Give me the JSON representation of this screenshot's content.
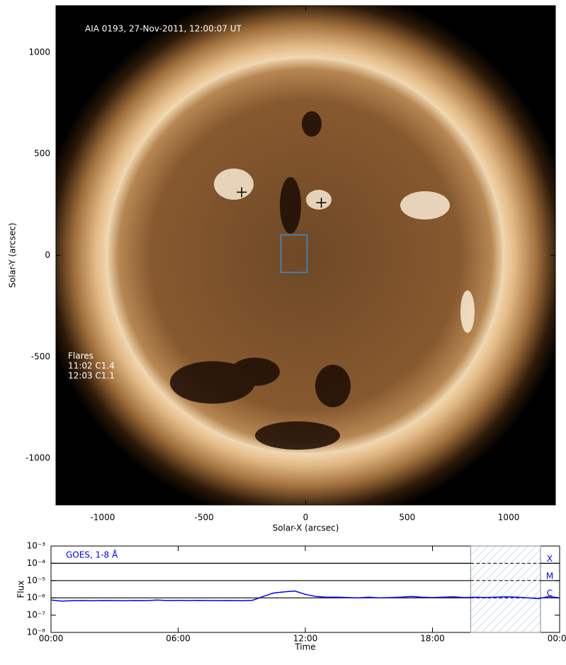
{
  "chart_data": [
    {
      "type": "image",
      "title": "AIA 0193, 27-Nov-2011, 12:00:07 UT",
      "annotations": [
        "Flares",
        "11:02 C1.4",
        "12:03 C1.1"
      ],
      "xlabel": "Solar-X (arcsec)",
      "ylabel": "Solar-Y (arcsec)",
      "xlim": [
        -1230,
        1230
      ],
      "ylim": [
        -1230,
        1230
      ],
      "xticks": [
        -1000,
        -500,
        0,
        500,
        1000
      ],
      "yticks": [
        -1000,
        -500,
        0,
        500,
        1000
      ],
      "markers": {
        "x": [
          -315,
          77
        ],
        "y": [
          311,
          259
        ],
        "color": "#000000"
      },
      "box": {
        "x": [
          -122,
          7
        ],
        "y": [
          -84,
          101
        ],
        "color": "#3a8fd0"
      }
    },
    {
      "type": "line",
      "title": "GOES, 1-8 Å",
      "xlabel": "Time",
      "ylabel": "Flux",
      "color": "#0000ff",
      "ylog": true,
      "xlim": [
        0,
        24
      ],
      "ylim": [
        1e-08,
        0.001
      ],
      "xticks": [
        {
          "value": 0,
          "label": "00:00"
        },
        {
          "value": 6,
          "label": "06:00"
        },
        {
          "value": 12,
          "label": "12:00"
        },
        {
          "value": 18,
          "label": "18:00"
        },
        {
          "value": 24,
          "label": "00:00"
        }
      ],
      "yticks": [
        {
          "value": 1e-08,
          "label": "10⁻⁸"
        },
        {
          "value": 1e-07,
          "label": "10⁻⁷"
        },
        {
          "value": 1e-06,
          "label": "10⁻⁶"
        },
        {
          "value": 1e-05,
          "label": "10⁻⁵"
        },
        {
          "value": 0.0001,
          "label": "10⁻⁴"
        },
        {
          "value": 0.001,
          "label": "10⁻³"
        }
      ],
      "thresholds": [
        {
          "value": 0.0001,
          "label": "X"
        },
        {
          "value": 1e-05,
          "label": "M"
        },
        {
          "value": 1e-06,
          "label": "C"
        }
      ],
      "shaded_range": [
        19.8,
        23.1
      ],
      "x": [
        0,
        0.5,
        1,
        1.5,
        2,
        2.5,
        3,
        3.5,
        4,
        4.5,
        5,
        5.5,
        6,
        6.5,
        7,
        7.5,
        8,
        8.5,
        9,
        9.5,
        10,
        10.5,
        11,
        11.5,
        12,
        12.5,
        13,
        13.5,
        14,
        14.5,
        15,
        15.5,
        16,
        16.5,
        17,
        17.5,
        18,
        18.5,
        19,
        19.5,
        20,
        20.5,
        21,
        21.5,
        22,
        22.5,
        23,
        23.5,
        24
      ],
      "values": [
        7.5e-07,
        6.5e-07,
        6.8e-07,
        7e-07,
        6.8e-07,
        7e-07,
        6.9e-07,
        6.8e-07,
        7e-07,
        6.9e-07,
        7.5e-07,
        7e-07,
        7.2e-07,
        7e-07,
        7.1e-07,
        7e-07,
        6.9e-07,
        7e-07,
        6.8e-07,
        7.2e-07,
        1.2e-06,
        1.9e-06,
        2.2e-06,
        2.5e-06,
        1.6e-06,
        1.2e-06,
        1.1e-06,
        1.1e-06,
        1.05e-06,
        1e-06,
        1.1e-06,
        1e-06,
        1.05e-06,
        1.1e-06,
        1.2e-06,
        1.1e-06,
        1.05e-06,
        1.1e-06,
        1.15e-06,
        1.05e-06,
        1.1e-06,
        1.05e-06,
        1.1e-06,
        1.15e-06,
        1.1e-06,
        1e-06,
        9e-07,
        1.2e-06,
        1e-06
      ]
    }
  ]
}
